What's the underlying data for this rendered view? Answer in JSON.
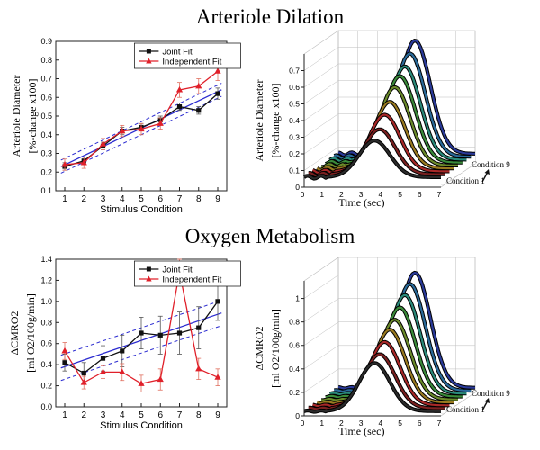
{
  "sections": {
    "top_title": "Arteriole Dilation",
    "bottom_title": "Oxygen Metabolism"
  },
  "colors": {
    "joint": "#111111",
    "independent": "#e0202a",
    "fit": "#2b2bd0",
    "grid": "#bdbdbd"
  },
  "chart_data": [
    {
      "id": "dilation-2d",
      "type": "line",
      "title": "Arteriole Dilation",
      "xlabel": "Stimulus Condition",
      "ylabel": "Arteriole Diameter",
      "ylabel2": "[%-change x100]",
      "categories": [
        1,
        2,
        3,
        4,
        5,
        6,
        7,
        8,
        9
      ],
      "ylim": [
        0.1,
        0.9
      ],
      "yticks": [
        0.1,
        0.2,
        0.3,
        0.4,
        0.5,
        0.6,
        0.7,
        0.8,
        0.9
      ],
      "series": [
        {
          "name": "Joint Fit",
          "marker": "square",
          "values": [
            0.23,
            0.26,
            0.34,
            0.42,
            0.44,
            0.48,
            0.55,
            0.53,
            0.62
          ],
          "err": [
            0.02,
            0.02,
            0.02,
            0.02,
            0.02,
            0.02,
            0.02,
            0.02,
            0.03
          ]
        },
        {
          "name": "Independent Fit",
          "marker": "triangle",
          "values": [
            0.24,
            0.25,
            0.35,
            0.42,
            0.43,
            0.46,
            0.64,
            0.66,
            0.74
          ],
          "err": [
            0.03,
            0.03,
            0.03,
            0.03,
            0.03,
            0.03,
            0.04,
            0.04,
            0.05
          ]
        }
      ],
      "fit": {
        "intercept": 0.19,
        "slope": 0.049,
        "band": 0.035
      },
      "legend": [
        "Joint Fit",
        "Independent Fit"
      ]
    },
    {
      "id": "dilation-3d",
      "type": "area",
      "zlabel": "Arteriole Diameter",
      "zlabel2": "[%-change x100]",
      "xlabel": "Time (sec)",
      "xticks": [
        0,
        1,
        2,
        3,
        4,
        5,
        6,
        7
      ],
      "zticks": [
        0,
        0.1,
        0.2,
        0.3,
        0.4,
        0.5,
        0.6,
        0.7
      ],
      "zlim": [
        0,
        0.8
      ],
      "depth_labels": [
        "Condition 9",
        "Condition 1"
      ],
      "peaks": [
        0.28,
        0.33,
        0.4,
        0.46,
        0.53,
        0.58,
        0.62,
        0.68,
        0.74
      ],
      "peak_time": 3.6,
      "baseline": 0.06
    },
    {
      "id": "cmro2-2d",
      "type": "line",
      "title": "Oxygen Metabolism",
      "xlabel": "Stimulus Condition",
      "ylabel": "ΔCMRO2",
      "ylabel2": "[ml O2/100g/min]",
      "categories": [
        1,
        2,
        3,
        4,
        5,
        6,
        7,
        8,
        9
      ],
      "ylim": [
        0,
        1.4
      ],
      "yticks": [
        0,
        0.2,
        0.4,
        0.6,
        0.8,
        1.0,
        1.2,
        1.4
      ],
      "series": [
        {
          "name": "Joint Fit",
          "marker": "square",
          "values": [
            0.42,
            0.32,
            0.46,
            0.53,
            0.7,
            0.68,
            0.7,
            0.75,
            1.0
          ],
          "err": [
            0.08,
            0.1,
            0.12,
            0.15,
            0.15,
            0.18,
            0.2,
            0.2,
            0.18
          ]
        },
        {
          "name": "Independent Fit",
          "marker": "triangle",
          "values": [
            0.53,
            0.23,
            0.33,
            0.33,
            0.22,
            0.26,
            1.28,
            0.36,
            0.28
          ],
          "err": [
            0.08,
            0.06,
            0.06,
            0.08,
            0.08,
            0.1,
            0.12,
            0.1,
            0.08
          ]
        }
      ],
      "fit": {
        "intercept": 0.32,
        "slope": 0.062,
        "band": 0.12
      },
      "legend": [
        "Joint Fit",
        "Independent Fit"
      ]
    },
    {
      "id": "cmro2-3d",
      "type": "area",
      "zlabel": "ΔCMRO2",
      "zlabel2": "[ml O2/100g/min]",
      "xlabel": "Time (sec)",
      "xticks": [
        0,
        1,
        2,
        3,
        4,
        5,
        6,
        7
      ],
      "zticks": [
        0,
        0.2,
        0.4,
        0.6,
        0.8,
        1
      ],
      "zlim": [
        0,
        1.15
      ],
      "depth_labels": [
        "Condition 9",
        "Condition 1"
      ],
      "peaks": [
        0.45,
        0.5,
        0.58,
        0.66,
        0.72,
        0.8,
        0.88,
        0.95,
        1.02
      ],
      "peak_time": 3.6,
      "baseline": 0.04
    }
  ]
}
